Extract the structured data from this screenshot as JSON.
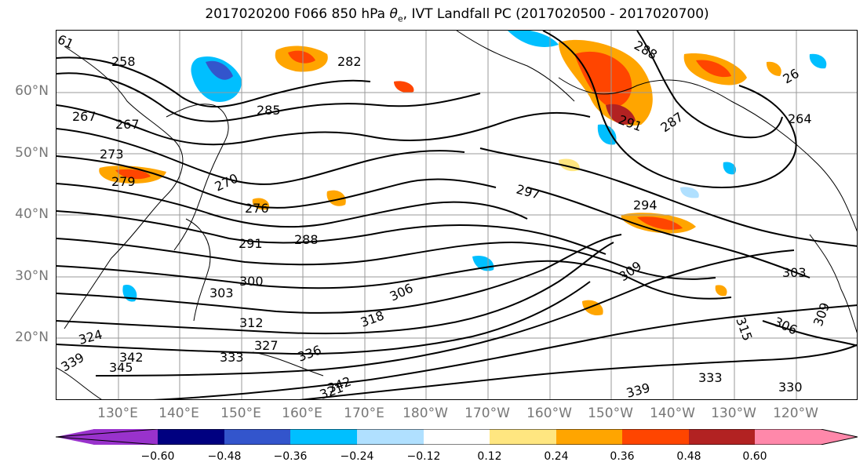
{
  "title": {
    "prefix": "2017020200 F066 850 hPa ",
    "theta_symbol": "θ",
    "theta_sub": "e",
    "suffix": ", IVT Landfall PC (2017020500 - 2017020700)"
  },
  "latitude_labels": [
    "60°N",
    "50°N",
    "40°N",
    "30°N",
    "20°N"
  ],
  "longitude_labels": [
    "130°E",
    "140°E",
    "150°E",
    "160°E",
    "170°E",
    "180°W",
    "170°W",
    "160°W",
    "150°W",
    "140°W",
    "130°W",
    "120°W"
  ],
  "contour_labels": [
    "61",
    "258",
    "282",
    "288",
    "285",
    "267",
    "267",
    "273",
    "279",
    "270",
    "276",
    "291",
    "287",
    "264",
    "297",
    "294",
    "291",
    "288",
    "300",
    "303",
    "306",
    "309",
    "303",
    "312",
    "318",
    "324",
    "327",
    "333",
    "339",
    "345",
    "342",
    "336",
    "342",
    "339",
    "333",
    "330",
    "315",
    "306",
    "309",
    "321",
    "26"
  ],
  "colorbar": {
    "ticks": [
      "−0.60",
      "−0.48",
      "−0.36",
      "−0.24",
      "−0.12",
      "0.12",
      "0.24",
      "0.36",
      "0.48",
      "0.60"
    ],
    "colors": [
      "#9932cc",
      "#000080",
      "#3355cc",
      "#00bfff",
      "#b0e0ff",
      "#ffffff",
      "#ffe680",
      "#ffa500",
      "#ff4500",
      "#b22222",
      "#ff88aa"
    ]
  },
  "colors": {
    "contour": "#000000",
    "grid": "#999999",
    "axis_label": "#777777"
  }
}
